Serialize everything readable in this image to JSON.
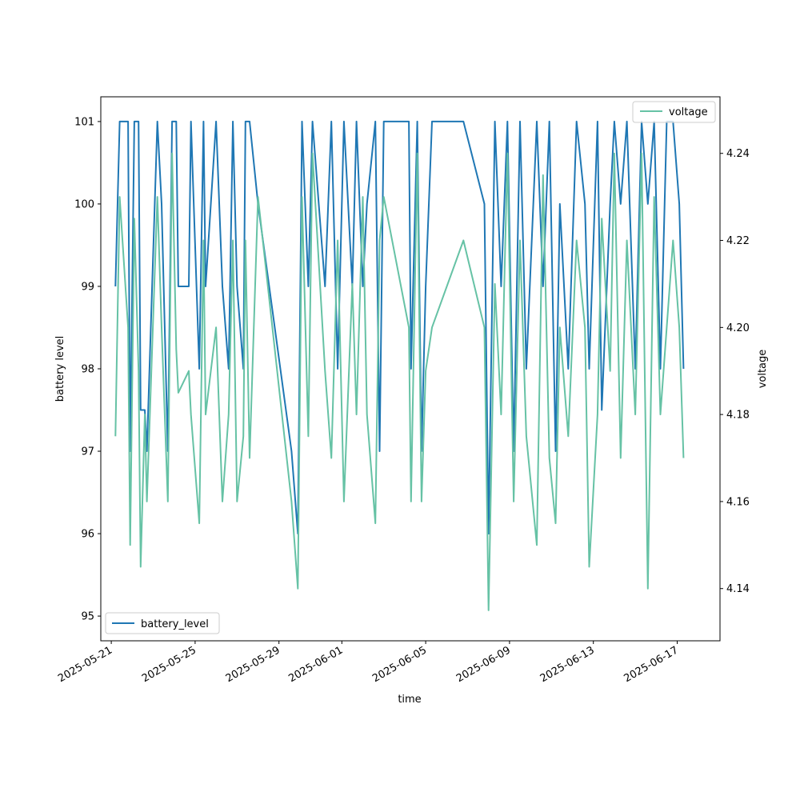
{
  "chart_data": {
    "type": "line",
    "x_dates": [
      "2025-05-21",
      "2025-05-22",
      "2025-05-23",
      "2025-05-24",
      "2025-05-25",
      "2025-05-26",
      "2025-05-27",
      "2025-05-28",
      "2025-05-29",
      "2025-05-30",
      "2025-05-31",
      "2025-06-01",
      "2025-06-02",
      "2025-06-03",
      "2025-06-04",
      "2025-06-05",
      "2025-06-06",
      "2025-06-07",
      "2025-06-08",
      "2025-06-09",
      "2025-06-10",
      "2025-06-11",
      "2025-06-12",
      "2025-06-13",
      "2025-06-14",
      "2025-06-15",
      "2025-06-16",
      "2025-06-17"
    ],
    "xlabel": "time",
    "ylabel": "battery level",
    "y2label": "voltage",
    "xlim": [
      "2025-05-20T12:00",
      "2025-06-19T01:00"
    ],
    "ylim": [
      94.7,
      101.3
    ],
    "y2lim": [
      4.128,
      4.253
    ],
    "x_ticks": [
      "2025-05-21",
      "2025-05-25",
      "2025-05-29",
      "2025-06-01",
      "2025-06-05",
      "2025-06-09",
      "2025-06-13",
      "2025-06-17"
    ],
    "y_ticks": [
      95,
      96,
      97,
      98,
      99,
      100,
      101
    ],
    "y2_ticks": [
      "4.14",
      "4.16",
      "4.18",
      "4.20",
      "4.22",
      "4.24"
    ],
    "grid": false,
    "series": [
      {
        "name": "battery_level",
        "axis": "left",
        "color": "#1f77b4",
        "legend": "bottom-left",
        "values": [
          [
            0.2,
            99
          ],
          [
            0.4,
            101
          ],
          [
            0.8,
            101
          ],
          [
            0.9,
            97
          ],
          [
            1.1,
            101
          ],
          [
            1.3,
            101
          ],
          [
            1.4,
            97.5
          ],
          [
            1.6,
            97.5
          ],
          [
            1.7,
            97
          ],
          [
            2.2,
            101
          ],
          [
            2.4,
            100
          ],
          [
            2.7,
            97
          ],
          [
            2.9,
            101
          ],
          [
            3.1,
            101
          ],
          [
            3.2,
            99
          ],
          [
            3.7,
            99
          ],
          [
            3.8,
            101
          ],
          [
            4.2,
            98
          ],
          [
            4.4,
            101
          ],
          [
            4.5,
            99
          ],
          [
            5.0,
            101
          ],
          [
            5.3,
            99
          ],
          [
            5.6,
            98
          ],
          [
            5.8,
            101
          ],
          [
            6.0,
            99
          ],
          [
            6.3,
            98
          ],
          [
            6.4,
            101
          ],
          [
            6.6,
            101
          ],
          [
            7.0,
            100
          ],
          [
            8.6,
            97
          ],
          [
            8.9,
            96
          ],
          [
            9.1,
            101
          ],
          [
            9.4,
            99
          ],
          [
            9.6,
            101
          ],
          [
            10.2,
            99
          ],
          [
            10.5,
            101
          ],
          [
            10.8,
            98
          ],
          [
            11.1,
            101
          ],
          [
            11.5,
            99
          ],
          [
            11.7,
            101
          ],
          [
            12.0,
            99
          ],
          [
            12.2,
            100
          ],
          [
            12.6,
            101
          ],
          [
            12.8,
            97
          ],
          [
            13.0,
            101
          ],
          [
            14.2,
            101
          ],
          [
            14.3,
            98
          ],
          [
            14.6,
            101
          ],
          [
            14.8,
            97
          ],
          [
            15.0,
            99
          ],
          [
            15.3,
            101
          ],
          [
            16.8,
            101
          ],
          [
            17.8,
            100
          ],
          [
            18.0,
            96
          ],
          [
            18.3,
            101
          ],
          [
            18.6,
            99
          ],
          [
            18.9,
            101
          ],
          [
            19.2,
            97
          ],
          [
            19.5,
            101
          ],
          [
            19.8,
            98
          ],
          [
            20.3,
            101
          ],
          [
            20.6,
            99
          ],
          [
            20.9,
            101
          ],
          [
            21.2,
            97
          ],
          [
            21.4,
            100
          ],
          [
            21.8,
            98
          ],
          [
            22.2,
            101
          ],
          [
            22.6,
            100
          ],
          [
            22.8,
            98
          ],
          [
            23.2,
            101
          ],
          [
            23.4,
            97.5
          ],
          [
            23.8,
            100
          ],
          [
            24.0,
            101
          ],
          [
            24.3,
            100
          ],
          [
            24.6,
            101
          ],
          [
            25.0,
            98
          ],
          [
            25.3,
            101
          ],
          [
            25.6,
            100
          ],
          [
            25.9,
            101
          ],
          [
            26.2,
            98
          ],
          [
            26.5,
            101
          ],
          [
            26.8,
            101
          ],
          [
            27.1,
            100
          ],
          [
            27.3,
            98
          ]
        ]
      },
      {
        "name": "voltage",
        "axis": "right",
        "color": "#66c2a5",
        "legend": "top-right",
        "values": [
          [
            0.2,
            4.175
          ],
          [
            0.4,
            4.23
          ],
          [
            0.8,
            4.2
          ],
          [
            0.9,
            4.15
          ],
          [
            1.1,
            4.225
          ],
          [
            1.3,
            4.19
          ],
          [
            1.4,
            4.145
          ],
          [
            1.6,
            4.18
          ],
          [
            1.7,
            4.16
          ],
          [
            2.2,
            4.23
          ],
          [
            2.4,
            4.2
          ],
          [
            2.7,
            4.16
          ],
          [
            2.9,
            4.24
          ],
          [
            3.1,
            4.195
          ],
          [
            3.2,
            4.185
          ],
          [
            3.7,
            4.19
          ],
          [
            3.8,
            4.18
          ],
          [
            4.2,
            4.155
          ],
          [
            4.4,
            4.22
          ],
          [
            4.5,
            4.18
          ],
          [
            5.0,
            4.2
          ],
          [
            5.3,
            4.16
          ],
          [
            5.6,
            4.18
          ],
          [
            5.8,
            4.22
          ],
          [
            6.0,
            4.16
          ],
          [
            6.3,
            4.175
          ],
          [
            6.4,
            4.22
          ],
          [
            6.6,
            4.17
          ],
          [
            7.0,
            4.23
          ],
          [
            8.6,
            4.16
          ],
          [
            8.9,
            4.14
          ],
          [
            9.1,
            4.23
          ],
          [
            9.4,
            4.175
          ],
          [
            9.6,
            4.24
          ],
          [
            10.2,
            4.19
          ],
          [
            10.5,
            4.17
          ],
          [
            10.8,
            4.22
          ],
          [
            11.1,
            4.16
          ],
          [
            11.5,
            4.21
          ],
          [
            11.7,
            4.18
          ],
          [
            12.0,
            4.23
          ],
          [
            12.2,
            4.18
          ],
          [
            12.6,
            4.155
          ],
          [
            12.8,
            4.22
          ],
          [
            13.0,
            4.23
          ],
          [
            14.2,
            4.2
          ],
          [
            14.3,
            4.16
          ],
          [
            14.6,
            4.24
          ],
          [
            14.8,
            4.16
          ],
          [
            15.0,
            4.19
          ],
          [
            15.3,
            4.2
          ],
          [
            16.8,
            4.22
          ],
          [
            17.8,
            4.2
          ],
          [
            18.0,
            4.135
          ],
          [
            18.3,
            4.21
          ],
          [
            18.6,
            4.18
          ],
          [
            18.9,
            4.24
          ],
          [
            19.2,
            4.16
          ],
          [
            19.5,
            4.22
          ],
          [
            19.8,
            4.175
          ],
          [
            20.3,
            4.15
          ],
          [
            20.6,
            4.235
          ],
          [
            20.9,
            4.17
          ],
          [
            21.2,
            4.155
          ],
          [
            21.4,
            4.2
          ],
          [
            21.8,
            4.175
          ],
          [
            22.2,
            4.22
          ],
          [
            22.6,
            4.2
          ],
          [
            22.8,
            4.145
          ],
          [
            23.2,
            4.18
          ],
          [
            23.4,
            4.225
          ],
          [
            23.8,
            4.19
          ],
          [
            24.0,
            4.24
          ],
          [
            24.3,
            4.17
          ],
          [
            24.6,
            4.22
          ],
          [
            25.0,
            4.18
          ],
          [
            25.3,
            4.24
          ],
          [
            25.6,
            4.14
          ],
          [
            25.9,
            4.23
          ],
          [
            26.2,
            4.18
          ],
          [
            26.5,
            4.2
          ],
          [
            26.8,
            4.22
          ],
          [
            27.1,
            4.2
          ],
          [
            27.3,
            4.17
          ]
        ]
      }
    ]
  }
}
